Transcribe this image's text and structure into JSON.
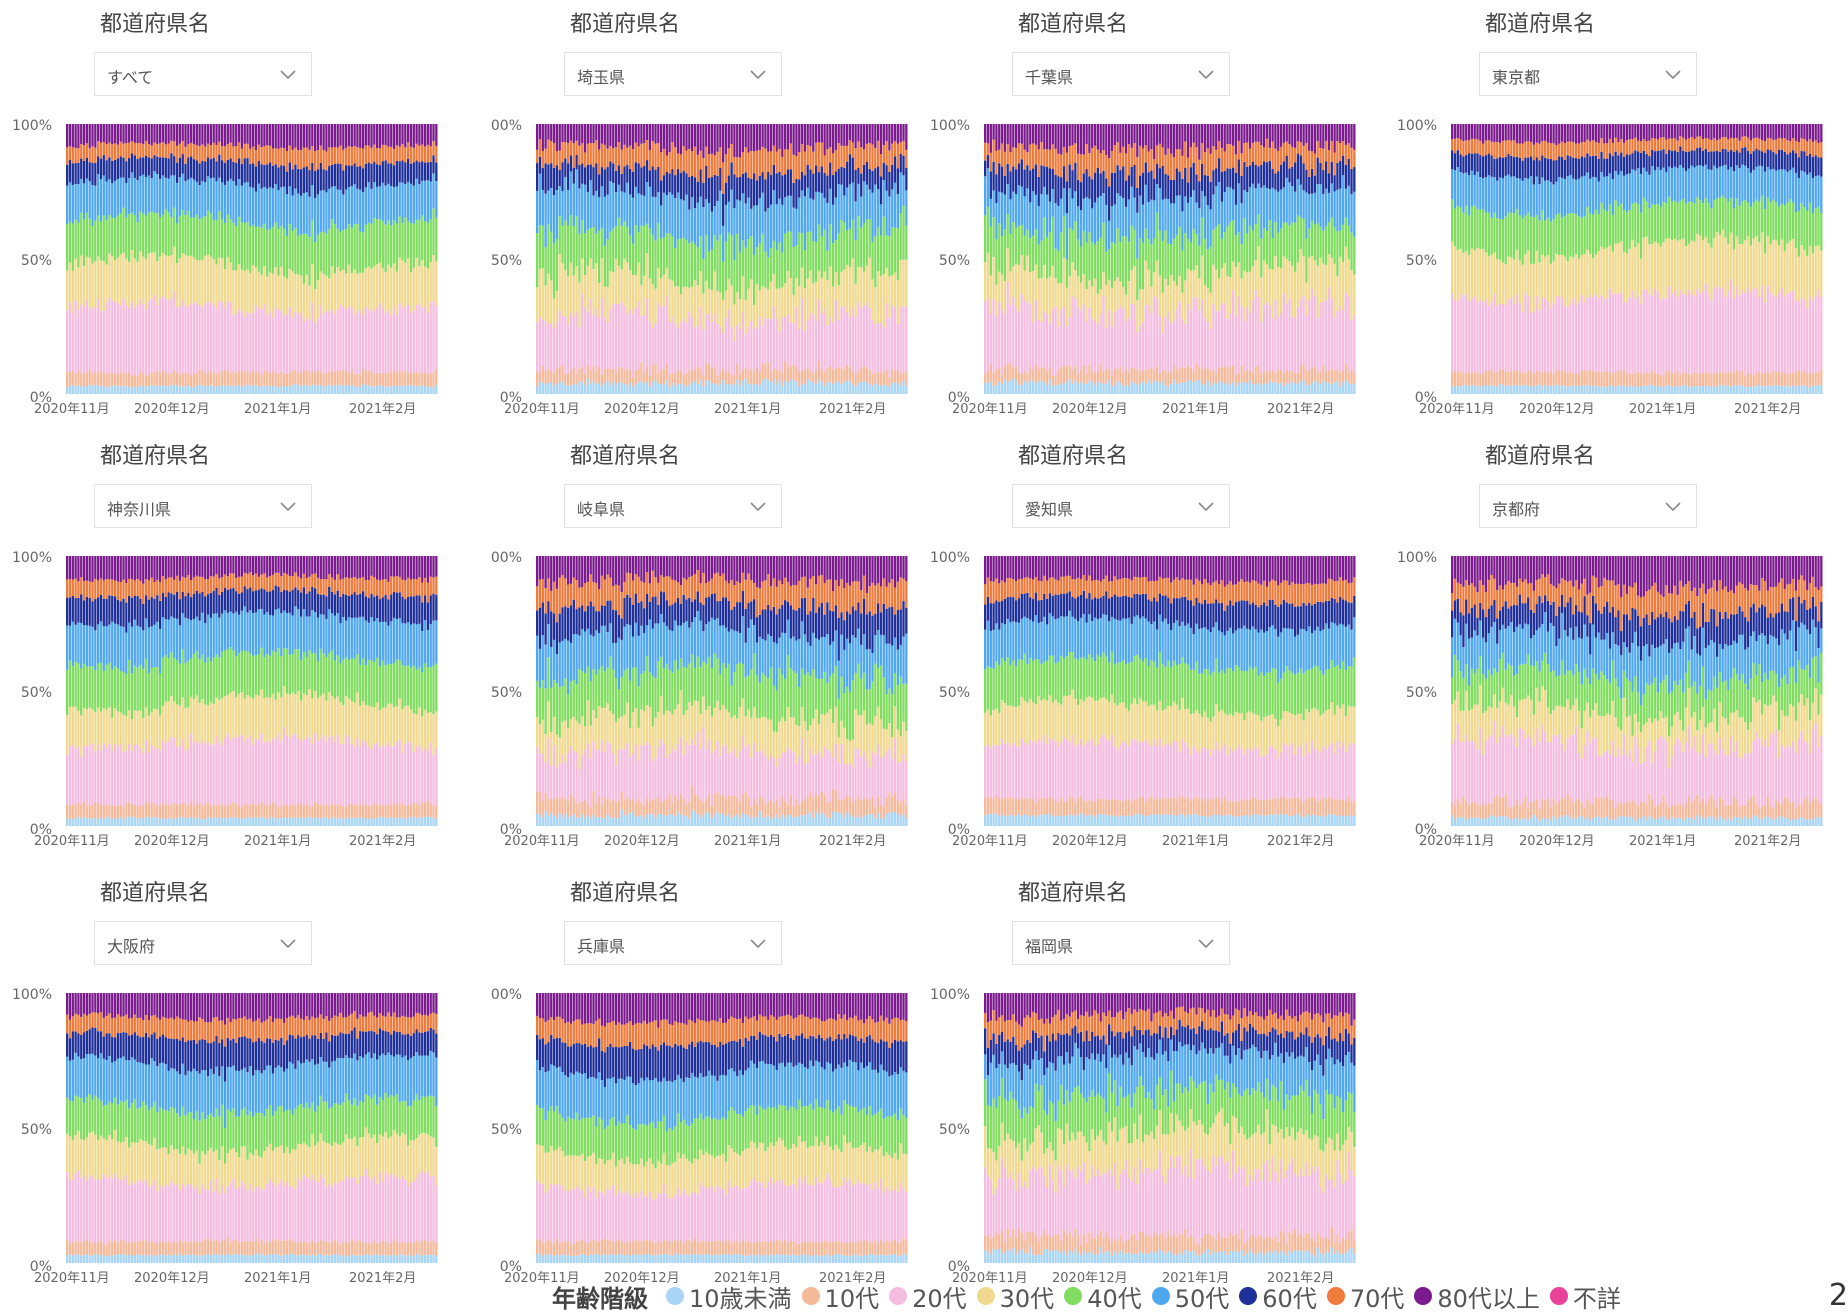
{
  "filter_label": "都道府県名",
  "legend_title": "年齢階級",
  "page_number": "2",
  "age_groups": [
    {
      "name": "10歳未満",
      "color": "#a8d4f5"
    },
    {
      "name": "10代",
      "color": "#f5b89a"
    },
    {
      "name": "20代",
      "color": "#f4bde0"
    },
    {
      "name": "30代",
      "color": "#f0d98e"
    },
    {
      "name": "40代",
      "color": "#7fdc5e"
    },
    {
      "name": "50代",
      "color": "#4fa8ef"
    },
    {
      "name": "60代",
      "color": "#1f2f9a"
    },
    {
      "name": "70代",
      "color": "#ee7a3c"
    },
    {
      "name": "80代以上",
      "color": "#7a1a8c"
    },
    {
      "name": "不詳",
      "color": "#e8419a"
    }
  ],
  "chart_data": [
    {
      "type": "bar",
      "stacked": "100%",
      "filter_value": "すべて",
      "x_tick_labels": [
        "2020年11月",
        "2020年12月",
        "2021年1月",
        "2021年2月"
      ],
      "y_tick_labels": [
        "0%",
        "50%",
        "100%"
      ],
      "series": [
        {
          "name": "10歳未満",
          "values": [
            3
          ]
        },
        {
          "name": "10代",
          "values": [
            5
          ]
        },
        {
          "name": "20代",
          "values": [
            24
          ]
        },
        {
          "name": "30代",
          "values": [
            16
          ]
        },
        {
          "name": "40代",
          "values": [
            16
          ]
        },
        {
          "name": "50代",
          "values": [
            14
          ]
        },
        {
          "name": "60代",
          "values": [
            8
          ]
        },
        {
          "name": "70代",
          "values": [
            6
          ]
        },
        {
          "name": "80代以上",
          "values": [
            8
          ]
        },
        {
          "name": "不詳",
          "values": [
            0
          ]
        }
      ]
    },
    {
      "type": "bar",
      "stacked": "100%",
      "filter_value": "埼玉県",
      "x_tick_labels": [
        "2020年11月",
        "2020年12月",
        "2021年1月",
        "2021年2月"
      ],
      "y_tick_labels": [
        "0%",
        "50%",
        "00%"
      ],
      "series": [
        {
          "name": "10歳未満",
          "values": [
            4
          ]
        },
        {
          "name": "10代",
          "values": [
            5
          ]
        },
        {
          "name": "20代",
          "values": [
            20
          ]
        },
        {
          "name": "30代",
          "values": [
            14
          ]
        },
        {
          "name": "40代",
          "values": [
            16
          ]
        },
        {
          "name": "50代",
          "values": [
            15
          ]
        },
        {
          "name": "60代",
          "values": [
            9
          ]
        },
        {
          "name": "70代",
          "values": [
            8
          ]
        },
        {
          "name": "80代以上",
          "values": [
            9
          ]
        },
        {
          "name": "不詳",
          "values": [
            0
          ]
        }
      ]
    },
    {
      "type": "bar",
      "stacked": "100%",
      "filter_value": "千葉県",
      "x_tick_labels": [
        "2020年11月",
        "2020年12月",
        "2021年1月",
        "2021年2月"
      ],
      "y_tick_labels": [
        "0%",
        "50%",
        "100%"
      ],
      "series": [
        {
          "name": "10歳未満",
          "values": [
            4
          ]
        },
        {
          "name": "10代",
          "values": [
            5
          ]
        },
        {
          "name": "20代",
          "values": [
            22
          ]
        },
        {
          "name": "30代",
          "values": [
            14
          ]
        },
        {
          "name": "40代",
          "values": [
            15
          ]
        },
        {
          "name": "50代",
          "values": [
            14
          ]
        },
        {
          "name": "60代",
          "values": [
            9
          ]
        },
        {
          "name": "70代",
          "values": [
            8
          ]
        },
        {
          "name": "80代以上",
          "values": [
            9
          ]
        },
        {
          "name": "不詳",
          "values": [
            0
          ]
        }
      ]
    },
    {
      "type": "bar",
      "stacked": "100%",
      "filter_value": "東京都",
      "x_tick_labels": [
        "2020年11月",
        "2020年12月",
        "2021年1月",
        "2021年2月"
      ],
      "y_tick_labels": [
        "0%",
        "50%",
        "100%"
      ],
      "series": [
        {
          "name": "10歳未満",
          "values": [
            3
          ]
        },
        {
          "name": "10代",
          "values": [
            5
          ]
        },
        {
          "name": "20代",
          "values": [
            28
          ]
        },
        {
          "name": "30代",
          "values": [
            18
          ]
        },
        {
          "name": "40代",
          "values": [
            15
          ]
        },
        {
          "name": "50代",
          "values": [
            13
          ]
        },
        {
          "name": "60代",
          "values": [
            7
          ]
        },
        {
          "name": "70代",
          "values": [
            5
          ]
        },
        {
          "name": "80代以上",
          "values": [
            6
          ]
        },
        {
          "name": "不詳",
          "values": [
            0
          ]
        }
      ]
    },
    {
      "type": "bar",
      "stacked": "100%",
      "filter_value": "神奈川県",
      "x_tick_labels": [
        "2020年11月",
        "2020年12月",
        "2021年1月",
        "2021年2月"
      ],
      "y_tick_labels": [
        "0%",
        "50%",
        "100%"
      ],
      "series": [
        {
          "name": "10歳未満",
          "values": [
            3
          ]
        },
        {
          "name": "10代",
          "values": [
            5
          ]
        },
        {
          "name": "20代",
          "values": [
            23
          ]
        },
        {
          "name": "30代",
          "values": [
            15
          ]
        },
        {
          "name": "40代",
          "values": [
            16
          ]
        },
        {
          "name": "50代",
          "values": [
            15
          ]
        },
        {
          "name": "60代",
          "values": [
            9
          ]
        },
        {
          "name": "70代",
          "values": [
            6
          ]
        },
        {
          "name": "80代以上",
          "values": [
            8
          ]
        },
        {
          "name": "不詳",
          "values": [
            0
          ]
        }
      ]
    },
    {
      "type": "bar",
      "stacked": "100%",
      "filter_value": "岐阜県",
      "x_tick_labels": [
        "2020年11月",
        "2020年12月",
        "2021年1月",
        "2021年2月"
      ],
      "y_tick_labels": [
        "0%",
        "50%",
        "00%"
      ],
      "series": [
        {
          "name": "10歳未満",
          "values": [
            4
          ]
        },
        {
          "name": "10代",
          "values": [
            6
          ]
        },
        {
          "name": "20代",
          "values": [
            18
          ]
        },
        {
          "name": "30代",
          "values": [
            13
          ]
        },
        {
          "name": "40代",
          "values": [
            16
          ]
        },
        {
          "name": "50代",
          "values": [
            15
          ]
        },
        {
          "name": "60代",
          "values": [
            10
          ]
        },
        {
          "name": "70代",
          "values": [
            9
          ]
        },
        {
          "name": "80代以上",
          "values": [
            9
          ]
        },
        {
          "name": "不詳",
          "values": [
            0
          ]
        }
      ]
    },
    {
      "type": "bar",
      "stacked": "100%",
      "filter_value": "愛知県",
      "x_tick_labels": [
        "2020年11月",
        "2020年12月",
        "2021年1月",
        "2021年2月"
      ],
      "y_tick_labels": [
        "0%",
        "50%",
        "100%"
      ],
      "series": [
        {
          "name": "10歳未満",
          "values": [
            4
          ]
        },
        {
          "name": "10代",
          "values": [
            6
          ]
        },
        {
          "name": "20代",
          "values": [
            20
          ]
        },
        {
          "name": "30代",
          "values": [
            14
          ]
        },
        {
          "name": "40代",
          "values": [
            16
          ]
        },
        {
          "name": "50代",
          "values": [
            15
          ]
        },
        {
          "name": "60代",
          "values": [
            9
          ]
        },
        {
          "name": "70代",
          "values": [
            7
          ]
        },
        {
          "name": "80代以上",
          "values": [
            9
          ]
        },
        {
          "name": "不詳",
          "values": [
            0
          ]
        }
      ]
    },
    {
      "type": "bar",
      "stacked": "100%",
      "filter_value": "京都府",
      "x_tick_labels": [
        "2020年11月",
        "2020年12月",
        "2021年1月",
        "2021年2月"
      ],
      "y_tick_labels": [
        "0%",
        "50%",
        "100%"
      ],
      "series": [
        {
          "name": "10歳未満",
          "values": [
            3
          ]
        },
        {
          "name": "10代",
          "values": [
            6
          ]
        },
        {
          "name": "20代",
          "values": [
            22
          ]
        },
        {
          "name": "30代",
          "values": [
            12
          ]
        },
        {
          "name": "40代",
          "values": [
            13
          ]
        },
        {
          "name": "50代",
          "values": [
            14
          ]
        },
        {
          "name": "60代",
          "values": [
            10
          ]
        },
        {
          "name": "70代",
          "values": [
            9
          ]
        },
        {
          "name": "80代以上",
          "values": [
            11
          ]
        },
        {
          "name": "不詳",
          "values": [
            0
          ]
        }
      ]
    },
    {
      "type": "bar",
      "stacked": "100%",
      "filter_value": "大阪府",
      "x_tick_labels": [
        "2020年11月",
        "2020年12月",
        "2021年1月",
        "2021年2月"
      ],
      "y_tick_labels": [
        "0%",
        "50%",
        "100%"
      ],
      "series": [
        {
          "name": "10歳未満",
          "values": [
            3
          ]
        },
        {
          "name": "10代",
          "values": [
            5
          ]
        },
        {
          "name": "20代",
          "values": [
            22
          ]
        },
        {
          "name": "30代",
          "values": [
            14
          ]
        },
        {
          "name": "40代",
          "values": [
            14
          ]
        },
        {
          "name": "50代",
          "values": [
            16
          ]
        },
        {
          "name": "60代",
          "values": [
            10
          ]
        },
        {
          "name": "70代",
          "values": [
            7
          ]
        },
        {
          "name": "80代以上",
          "values": [
            9
          ]
        },
        {
          "name": "不詳",
          "values": [
            0
          ]
        }
      ]
    },
    {
      "type": "bar",
      "stacked": "100%",
      "filter_value": "兵庫県",
      "x_tick_labels": [
        "2020年11月",
        "2020年12月",
        "2021年1月",
        "2021年2月"
      ],
      "y_tick_labels": [
        "0%",
        "50%",
        "00%"
      ],
      "series": [
        {
          "name": "10歳未満",
          "values": [
            3
          ]
        },
        {
          "name": "10代",
          "values": [
            5
          ]
        },
        {
          "name": "20代",
          "values": [
            20
          ]
        },
        {
          "name": "30代",
          "values": [
            13
          ]
        },
        {
          "name": "40代",
          "values": [
            14
          ]
        },
        {
          "name": "50代",
          "values": [
            16
          ]
        },
        {
          "name": "60代",
          "values": [
            11
          ]
        },
        {
          "name": "70代",
          "values": [
            8
          ]
        },
        {
          "name": "80代以上",
          "values": [
            10
          ]
        },
        {
          "name": "不詳",
          "values": [
            0
          ]
        }
      ]
    },
    {
      "type": "bar",
      "stacked": "100%",
      "filter_value": "福岡県",
      "x_tick_labels": [
        "2020年11月",
        "2020年12月",
        "2021年1月",
        "2021年2月"
      ],
      "y_tick_labels": [
        "0%",
        "50%",
        "100%"
      ],
      "series": [
        {
          "name": "10歳未満",
          "values": [
            4
          ]
        },
        {
          "name": "10代",
          "values": [
            6
          ]
        },
        {
          "name": "20代",
          "values": [
            24
          ]
        },
        {
          "name": "30代",
          "values": [
            14
          ]
        },
        {
          "name": "40代",
          "values": [
            15
          ]
        },
        {
          "name": "50代",
          "values": [
            14
          ]
        },
        {
          "name": "60代",
          "values": [
            8
          ]
        },
        {
          "name": "70代",
          "values": [
            7
          ]
        },
        {
          "name": "80代以上",
          "values": [
            8
          ]
        },
        {
          "name": "不詳",
          "values": [
            0
          ]
        }
      ]
    }
  ]
}
